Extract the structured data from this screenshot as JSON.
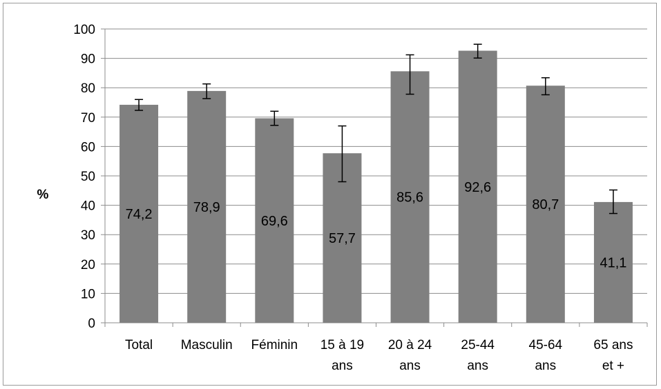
{
  "chart_data": {
    "type": "bar",
    "title": "",
    "xlabel": "",
    "ylabel": "%",
    "ylim": [
      0,
      100
    ],
    "yticks": [
      0,
      10,
      20,
      30,
      40,
      50,
      60,
      70,
      80,
      90,
      100
    ],
    "grid": true,
    "legend": "none",
    "bar_color": "#808080",
    "categories": [
      [
        "Total"
      ],
      [
        "Masculin"
      ],
      [
        "Féminin"
      ],
      [
        "15 à 19",
        "ans"
      ],
      [
        "20 à 24",
        "ans"
      ],
      [
        "25-44",
        "ans"
      ],
      [
        "45-64",
        "ans"
      ],
      [
        "65 ans",
        "et +"
      ]
    ],
    "values": [
      74.2,
      78.9,
      69.6,
      57.7,
      85.6,
      92.6,
      80.7,
      41.1
    ],
    "value_labels": [
      "74,2",
      "78,9",
      "69,6",
      "57,7",
      "85,6",
      "92,6",
      "80,7",
      "41,1"
    ],
    "error_low": [
      72.3,
      76.3,
      67.2,
      48.0,
      77.8,
      90.1,
      77.6,
      37.2
    ],
    "error_high": [
      76.0,
      81.3,
      72.0,
      67.0,
      91.2,
      94.8,
      83.4,
      45.2
    ]
  }
}
